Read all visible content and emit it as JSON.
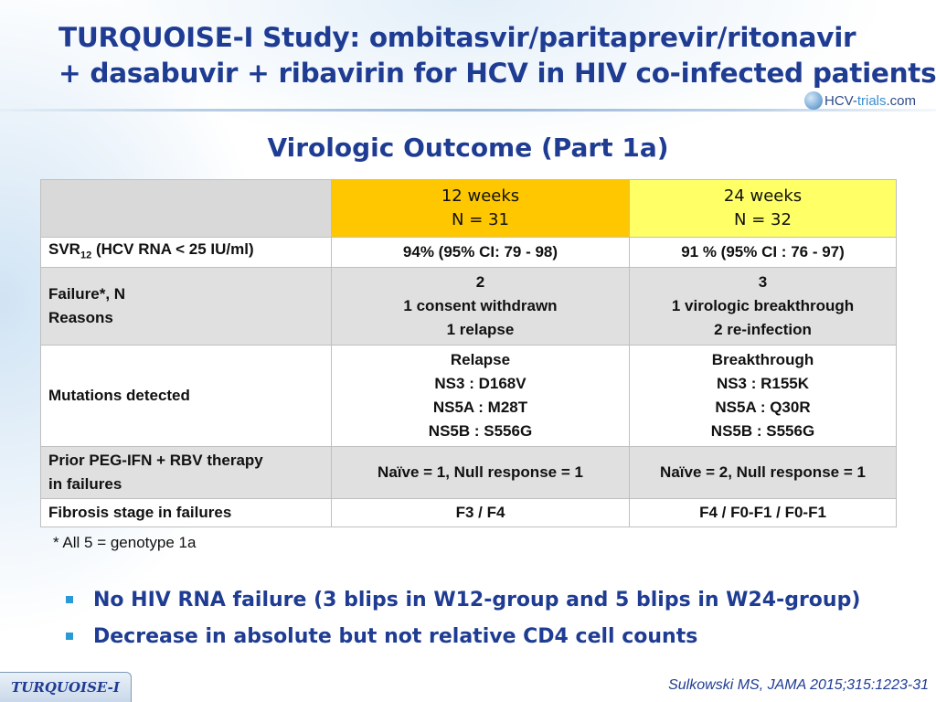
{
  "header": {
    "title_line1": "TURQUOISE-I Study: ombitasvir/paritaprevir/ritonavir",
    "title_line2": "+ dasabuvir + ribavirin for HCV in HIV co-infected patients",
    "logo": {
      "prefix": "HCV-",
      "middle": "trials",
      "suffix": ".com"
    }
  },
  "subtitle": "Virologic Outcome (Part 1a)",
  "table": {
    "columns": [
      {
        "line1": "",
        "line2": ""
      },
      {
        "line1": "12 weeks",
        "line2": "N = 31"
      },
      {
        "line1": "24 weeks",
        "line2": "N = 32"
      }
    ],
    "rows": {
      "svr": {
        "label_main": "SVR",
        "label_sub": "12",
        "label_rest": " (HCV RNA < 25 IU/ml)",
        "w12": "94% (95% CI: 79 - 98)",
        "w24": "91 % (95% CI : 76 - 97)"
      },
      "failure": {
        "label": [
          "Failure*, N",
          "Reasons"
        ],
        "w12": [
          "2",
          "1 consent withdrawn",
          "1 relapse"
        ],
        "w24": [
          "3",
          "1 virologic breakthrough",
          "2 re-infection"
        ]
      },
      "mutations": {
        "label": "Mutations detected",
        "w12": [
          "Relapse",
          "NS3 : D168V",
          "NS5A : M28T",
          "NS5B : S556G"
        ],
        "w24": [
          "Breakthrough",
          "NS3 : R155K",
          "NS5A : Q30R",
          "NS5B : S556G"
        ]
      },
      "prior": {
        "label": [
          "Prior PEG-IFN + RBV therapy",
          "in failures"
        ],
        "w12": "Naïve = 1, Null response = 1",
        "w24": "Naïve = 2, Null response = 1"
      },
      "fibrosis": {
        "label": "Fibrosis stage in failures",
        "w12": "F3 / F4",
        "w24": "F4 / F0-F1 / F0-F1"
      }
    }
  },
  "footnote": "* All 5 = genotype 1a",
  "bullets": [
    "No HIV RNA failure (3 blips in W12-group and 5 blips in W24-group)",
    "Decrease in absolute but not relative CD4 cell counts"
  ],
  "tab_label": "TURQUOISE-I",
  "citation": "Sulkowski MS, JAMA 2015;315:1223-31",
  "colors": {
    "title": "#1f3c93",
    "w12_header": "#ffc700",
    "w24_header": "#ffff66",
    "bullet_mark": "#2a9ad6"
  },
  "icons": [
    "hcv-trials-globe-icon",
    "bullet-square-icon"
  ]
}
